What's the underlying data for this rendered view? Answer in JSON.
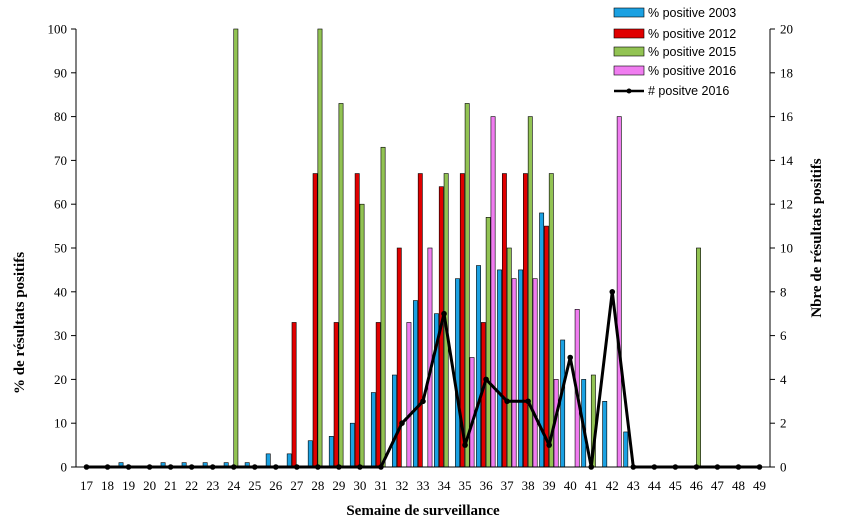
{
  "chart_data": {
    "type": "bar",
    "title": "",
    "xlabel": "Semaine de surveillance",
    "ylabel": "% de résultats positifs",
    "y2label": "Nbre de résultats positifs",
    "ylim": [
      0,
      100
    ],
    "y2lim": [
      0,
      20
    ],
    "yticks": [
      "0",
      "10",
      "20",
      "30",
      "40",
      "50",
      "60",
      "70",
      "80",
      "90",
      "100"
    ],
    "y2ticks": [
      "0",
      "2",
      "4",
      "6",
      "8",
      "10",
      "12",
      "14",
      "16",
      "18",
      "20"
    ],
    "categories": [
      "17",
      "18",
      "19",
      "20",
      "21",
      "22",
      "23",
      "24",
      "25",
      "26",
      "27",
      "28",
      "29",
      "30",
      "31",
      "32",
      "33",
      "34",
      "35",
      "36",
      "37",
      "38",
      "39",
      "40",
      "41",
      "42",
      "43",
      "44",
      "45",
      "46",
      "47",
      "48",
      "49"
    ],
    "series": [
      {
        "name": "% positive 2003",
        "type": "bar",
        "axis": "left",
        "color": "#1ba1e2",
        "values": [
          0,
          0,
          1,
          0,
          1,
          1,
          1,
          1,
          1,
          3,
          3,
          6,
          7,
          10,
          17,
          21,
          38,
          35,
          43,
          46,
          45,
          45,
          58,
          29,
          20,
          15,
          8,
          0,
          0,
          0,
          0,
          0,
          0
        ]
      },
      {
        "name": "% positive 2012",
        "type": "bar",
        "axis": "left",
        "color": "#e00000",
        "values": [
          0,
          0,
          0,
          0,
          0,
          0,
          0,
          0,
          0,
          0,
          33,
          67,
          33,
          67,
          33,
          50,
          67,
          64,
          67,
          33,
          67,
          67,
          55,
          0,
          0,
          0,
          0,
          0,
          0,
          0,
          0,
          0,
          0
        ]
      },
      {
        "name": "% positive 2015",
        "type": "bar",
        "axis": "left",
        "color": "#92c353",
        "values": [
          0,
          0,
          0,
          0,
          0,
          0,
          0,
          100,
          0,
          0,
          0,
          100,
          83,
          60,
          73,
          0,
          0,
          67,
          83,
          57,
          50,
          80,
          67,
          0,
          21,
          0,
          0,
          0,
          0,
          50,
          0,
          0,
          0
        ]
      },
      {
        "name": "% positive  2016",
        "type": "bar",
        "axis": "left",
        "color": "#f07df0",
        "values": [
          0,
          0,
          0,
          0,
          0,
          0,
          0,
          0,
          0,
          0,
          0,
          0,
          0,
          0,
          0,
          33,
          50,
          0,
          25,
          80,
          43,
          43,
          20,
          36,
          0,
          80,
          0,
          0,
          0,
          0,
          0,
          0,
          0
        ]
      },
      {
        "name": "# positve 2016",
        "type": "line",
        "axis": "right",
        "color": "#000000",
        "values": [
          0,
          0,
          0,
          0,
          0,
          0,
          0,
          0,
          0,
          0,
          0,
          0,
          0,
          0,
          0,
          2,
          3,
          7,
          1,
          4,
          3,
          3,
          1,
          5,
          0,
          8,
          0,
          0,
          0,
          0,
          0,
          0,
          0
        ]
      }
    ],
    "legend_position": "top-right",
    "grid": false
  }
}
